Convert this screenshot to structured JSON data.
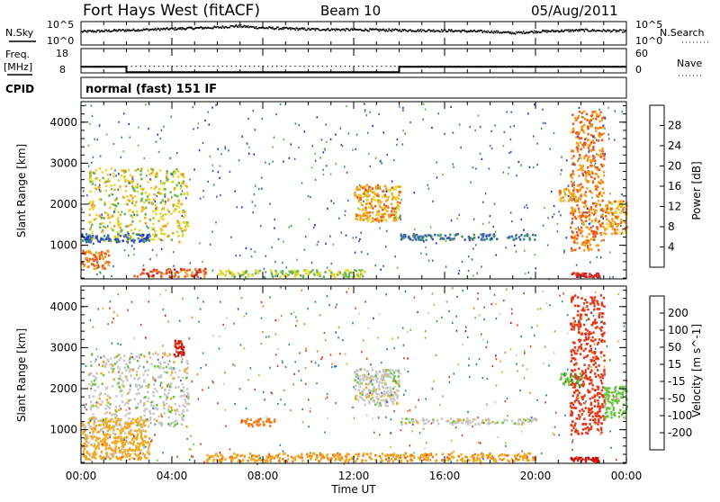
{
  "header": {
    "station": "Fort Hays West (fitACF)",
    "beam": "Beam 10",
    "date": "05/Aug/2011"
  },
  "panels": {
    "nsky_label": "N.Sky",
    "nsearch_label": "N.Search",
    "nsky_tick_hi": "10^5",
    "nsky_tick_lo": "10^0",
    "freq_label": "Freq.",
    "freq_unit": "[MHz]",
    "freq_tick_hi": "18",
    "freq_tick_lo": "8",
    "nave_label": "Nave",
    "nave_tick_hi": "60",
    "nave_tick_lo": "0",
    "cpid_label": "CPID",
    "cpid_text": "normal (fast) 151 IF"
  },
  "axes": {
    "ylabel": "Slant Range [km]",
    "xlabel": "Time UT",
    "y_ticks": [
      "1000",
      "2000",
      "3000",
      "4000"
    ],
    "x_ticks": [
      "00:00",
      "04:00",
      "08:00",
      "12:00",
      "16:00",
      "20:00",
      "00:00"
    ]
  },
  "power_scale": {
    "label": "Power [dB]",
    "ticks": [
      "4",
      "8",
      "12",
      "16",
      "20",
      "24",
      "28"
    ],
    "colors": [
      "#1f2fd8",
      "#3c5fbc",
      "#3f8f66",
      "#62b84a",
      "#e5d62a",
      "#f0a21e",
      "#ec5a1c",
      "#d81e1e"
    ]
  },
  "velocity_scale": {
    "label": "Velocity [m s^-1]",
    "ticks": [
      "200",
      "100",
      "50",
      "15",
      "-15",
      "-50",
      "-100",
      "-200"
    ],
    "colors": [
      "#2a48c0",
      "#2f7e9e",
      "#2f9c46",
      "#67c83a",
      "#c8c8c8",
      "#f0a820",
      "#f07c1c",
      "#e03a1a",
      "#cc0e0e"
    ]
  },
  "chart_data": [
    {
      "type": "line",
      "title": "",
      "xlabel": "Time UT",
      "ylabel": "",
      "series": [
        {
          "name": "N.Sky",
          "x": [
            0,
            2,
            4,
            6,
            6.8,
            8,
            10,
            12,
            14,
            16,
            18,
            19,
            20,
            22,
            24
          ],
          "y": [
            3.0,
            3.3,
            3.6,
            3.9,
            4.2,
            3.8,
            3.5,
            3.4,
            3.3,
            3.2,
            3.0,
            2.7,
            3.0,
            3.3,
            3.1
          ]
        },
        {
          "name": "Freq. [MHz]",
          "x": [
            0,
            2,
            2,
            14,
            14,
            24
          ],
          "y": [
            10.5,
            10.5,
            8.3,
            8.3,
            10.5,
            10.5
          ]
        }
      ],
      "xlim": [
        0,
        24
      ]
    },
    {
      "type": "heatmap",
      "title": "Power [dB]",
      "xlabel": "Time UT",
      "ylabel": "Slant Range [km]",
      "xlim": [
        0,
        24
      ],
      "ylim": [
        180,
        4500
      ],
      "regions": [
        {
          "t0": 0.3,
          "t1": 4.7,
          "r0": 1100,
          "r1": 2900,
          "value": 18
        },
        {
          "t0": 0.0,
          "t1": 1.2,
          "r0": 450,
          "r1": 900,
          "value": 24
        },
        {
          "t0": 0.0,
          "t1": 3.0,
          "r0": 1100,
          "r1": 1300,
          "value": 6
        },
        {
          "t0": 2.3,
          "t1": 5.5,
          "r0": 250,
          "r1": 450,
          "value": 26
        },
        {
          "t0": 6.0,
          "t1": 12.5,
          "r0": 250,
          "r1": 420,
          "value": 16
        },
        {
          "t0": 12.0,
          "t1": 14.0,
          "r0": 1600,
          "r1": 2500,
          "value": 22
        },
        {
          "t0": 14.0,
          "t1": 20.0,
          "r0": 1150,
          "r1": 1300,
          "value": 8
        },
        {
          "t0": 21.0,
          "t1": 22.0,
          "r0": 2100,
          "r1": 2400,
          "value": 22
        },
        {
          "t0": 21.5,
          "t1": 23.0,
          "r0": 900,
          "r1": 4300,
          "value": 24
        },
        {
          "t0": 23.0,
          "t1": 24.0,
          "r0": 1300,
          "r1": 2100,
          "value": 22
        },
        {
          "t0": 21.5,
          "t1": 22.8,
          "r0": 250,
          "r1": 350,
          "value": 30
        }
      ]
    },
    {
      "type": "heatmap",
      "title": "Velocity [m s^-1]",
      "xlabel": "Time UT",
      "ylabel": "Slant Range [km]",
      "xlim": [
        0,
        24
      ],
      "ylim": [
        180,
        4500
      ],
      "regions": [
        {
          "t0": 0.3,
          "t1": 4.7,
          "r0": 1100,
          "r1": 2900,
          "value": 0
        },
        {
          "t0": 0.0,
          "t1": 3.0,
          "r0": 300,
          "r1": 1300,
          "value": -30
        },
        {
          "t0": 4.0,
          "t1": 4.5,
          "r0": 2800,
          "r1": 3200,
          "value": -200
        },
        {
          "t0": 7.0,
          "t1": 8.5,
          "r0": 1100,
          "r1": 1300,
          "value": -80
        },
        {
          "t0": 5.5,
          "t1": 20.0,
          "r0": 250,
          "r1": 450,
          "value": -40
        },
        {
          "t0": 12.0,
          "t1": 14.0,
          "r0": 1600,
          "r1": 2500,
          "value": 0
        },
        {
          "t0": 14.0,
          "t1": 20.0,
          "r0": 1150,
          "r1": 1300,
          "value": 0
        },
        {
          "t0": 21.0,
          "t1": 22.0,
          "r0": 2100,
          "r1": 2400,
          "value": 40
        },
        {
          "t0": 21.5,
          "t1": 23.0,
          "r0": 900,
          "r1": 4300,
          "value": -150
        },
        {
          "t0": 23.0,
          "t1": 24.0,
          "r0": 1300,
          "r1": 2100,
          "value": 30
        },
        {
          "t0": 21.5,
          "t1": 22.8,
          "r0": 250,
          "r1": 350,
          "value": -250
        }
      ]
    }
  ]
}
